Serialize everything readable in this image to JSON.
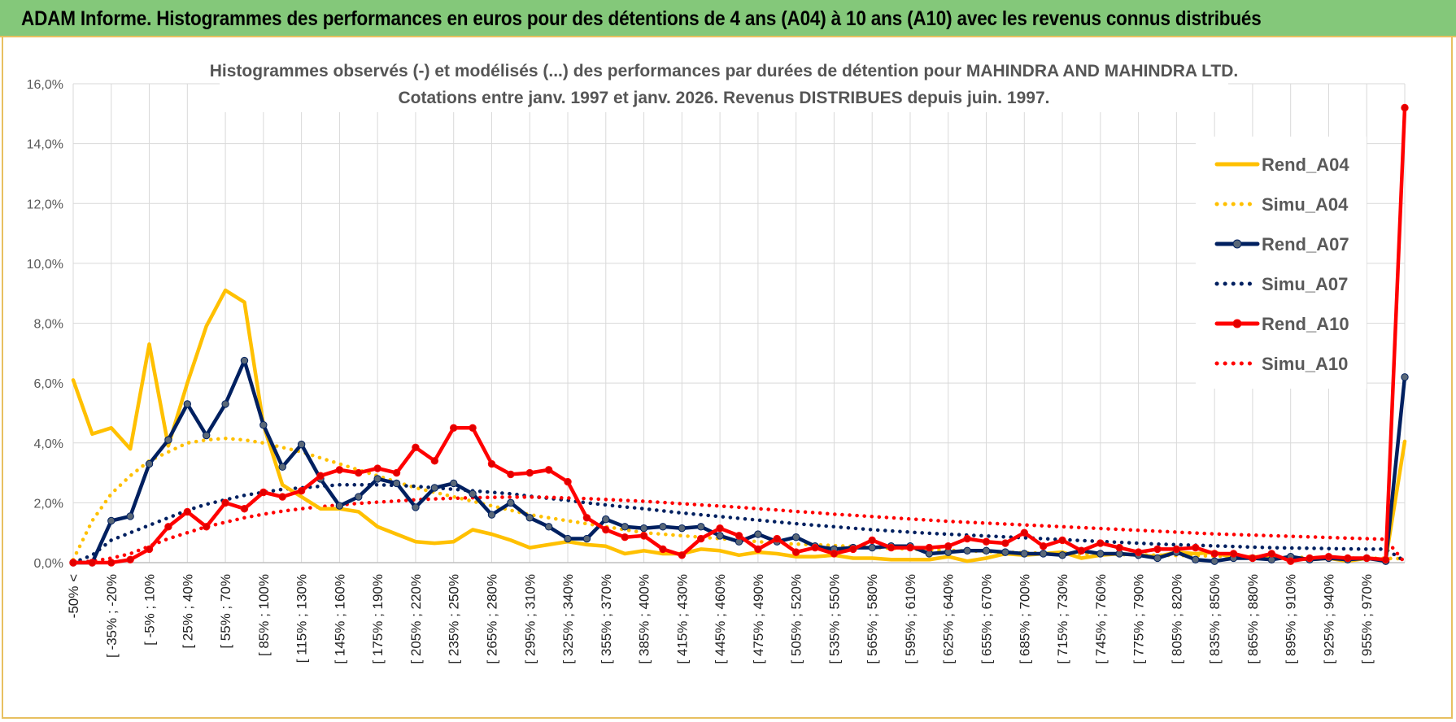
{
  "header": {
    "title": "ADAM Informe. Histogrammes des performances en euros pour des détentions de 4 ans (A04) à 10 ans (A10) avec les revenus connus distribués"
  },
  "colors": {
    "a04": "#FFC000",
    "a07": "#002060",
    "a10": "#FF0000",
    "a07_marker": "#5a6878",
    "a10_marker": "#E00000",
    "grid": "#d9d9d9",
    "banner": "#84c87a"
  },
  "chart_data": {
    "type": "line",
    "title_line1": "Histogrammes observés (-) et modélisés (...) des performances par durées de détention pour MAHINDRA AND MAHINDRA LTD.",
    "title_line2": "Cotations entre janv. 1997 et janv. 2026. Revenus DISTRIBUES depuis juin. 1997.",
    "ylim": [
      0,
      16
    ],
    "yticks": [
      "0,0%",
      "2,0%",
      "4,0%",
      "6,0%",
      "8,0%",
      "10,0%",
      "12,0%",
      "14,0%",
      "16,0%"
    ],
    "n_categories": 71,
    "x_tick_labels": [
      "-50% <",
      "[ -35% ; -20%",
      "[ -5% ; 10%",
      "[ 25% ; 40%",
      "[ 55% ; 70%",
      "[ 85% ; 100%",
      "[ 115% ; 130%",
      "[ 145% ; 160%",
      "[ 175% ; 190%",
      "[ 205% ; 220%",
      "[ 235% ; 250%",
      "[ 265% ; 280%",
      "[ 295% ; 310%",
      "[ 325% ; 340%",
      "[ 355% ; 370%",
      "[ 385% ; 400%",
      "[ 415% ; 430%",
      "[ 445% ; 460%",
      "[ 475% ; 490%",
      "[ 505% ; 520%",
      "[ 535% ; 550%",
      "[ 565% ; 580%",
      "[ 595% ; 610%",
      "[ 625% ; 640%",
      "[ 655% ; 670%",
      "[ 685% ; 700%",
      "[ 715% ; 730%",
      "[ 745% ; 760%",
      "[ 775% ; 790%",
      "[ 805% ; 820%",
      "[ 835% ; 850%",
      "[ 865% ; 880%",
      "[ 895% ; 910%",
      "[ 925% ; 940%",
      "[ 955% ; 970%"
    ],
    "legend_position": "right",
    "series": [
      {
        "name": "Rend_A04",
        "style": "solid",
        "markers": false,
        "color_key": "a04",
        "values": [
          6.1,
          4.3,
          4.5,
          3.8,
          7.3,
          3.9,
          6.0,
          7.9,
          9.1,
          8.7,
          4.6,
          2.6,
          2.2,
          1.8,
          1.8,
          1.7,
          1.2,
          0.95,
          0.7,
          0.65,
          0.7,
          1.1,
          0.95,
          0.75,
          0.5,
          0.6,
          0.7,
          0.6,
          0.55,
          0.3,
          0.4,
          0.3,
          0.3,
          0.45,
          0.4,
          0.25,
          0.35,
          0.3,
          0.2,
          0.2,
          0.25,
          0.15,
          0.15,
          0.1,
          0.1,
          0.1,
          0.2,
          0.05,
          0.15,
          0.3,
          0.25,
          0.3,
          0.35,
          0.15,
          0.25,
          0.3,
          0.25,
          0.2,
          0.35,
          0.3,
          0.35,
          0.15,
          0.2,
          0.15,
          0.15,
          0.1,
          0.15,
          0.05,
          0.15,
          0.1,
          4.05
        ]
      },
      {
        "name": "Simu_A04",
        "style": "dotted",
        "markers": false,
        "color_key": "a04",
        "values": [
          0.1,
          1.4,
          2.3,
          2.9,
          3.4,
          3.7,
          4.0,
          4.1,
          4.15,
          4.1,
          4.0,
          3.85,
          3.7,
          3.5,
          3.3,
          3.1,
          2.9,
          2.7,
          2.5,
          2.35,
          2.2,
          2.05,
          1.9,
          1.75,
          1.6,
          1.5,
          1.4,
          1.3,
          1.2,
          1.1,
          1.0,
          0.95,
          0.9,
          0.85,
          0.8,
          0.75,
          0.7,
          0.65,
          0.62,
          0.6,
          0.57,
          0.54,
          0.51,
          0.48,
          0.45,
          0.43,
          0.41,
          0.39,
          0.37,
          0.35,
          0.33,
          0.32,
          0.3,
          0.29,
          0.28,
          0.27,
          0.26,
          0.25,
          0.24,
          0.23,
          0.22,
          0.21,
          0.2,
          0.19,
          0.18,
          0.17,
          0.16,
          0.15,
          0.15,
          0.14,
          0.13
        ]
      },
      {
        "name": "Rend_A07",
        "style": "solid",
        "markers": true,
        "color_key": "a07",
        "marker_key": "a07_marker",
        "values": [
          0.0,
          0.0,
          1.4,
          1.55,
          3.3,
          4.1,
          5.3,
          4.25,
          5.3,
          6.75,
          4.6,
          3.2,
          3.95,
          2.8,
          1.9,
          2.2,
          2.8,
          2.65,
          1.85,
          2.5,
          2.65,
          2.3,
          1.6,
          2.0,
          1.5,
          1.2,
          0.8,
          0.8,
          1.45,
          1.2,
          1.15,
          1.2,
          1.15,
          1.2,
          0.9,
          0.7,
          0.95,
          0.7,
          0.85,
          0.55,
          0.45,
          0.5,
          0.5,
          0.55,
          0.55,
          0.3,
          0.35,
          0.4,
          0.4,
          0.35,
          0.3,
          0.3,
          0.25,
          0.4,
          0.3,
          0.3,
          0.25,
          0.15,
          0.35,
          0.1,
          0.05,
          0.15,
          0.15,
          0.1,
          0.2,
          0.1,
          0.15,
          0.1,
          0.15,
          0.05,
          6.2
        ]
      },
      {
        "name": "Simu_A07",
        "style": "dotted",
        "markers": false,
        "color_key": "a07",
        "values": [
          0.0,
          0.25,
          0.75,
          1.0,
          1.25,
          1.5,
          1.75,
          1.95,
          2.1,
          2.25,
          2.35,
          2.45,
          2.5,
          2.55,
          2.6,
          2.6,
          2.6,
          2.58,
          2.55,
          2.5,
          2.45,
          2.4,
          2.35,
          2.3,
          2.22,
          2.15,
          2.08,
          2.0,
          1.93,
          1.86,
          1.8,
          1.73,
          1.66,
          1.6,
          1.54,
          1.48,
          1.42,
          1.36,
          1.3,
          1.25,
          1.2,
          1.15,
          1.1,
          1.06,
          1.02,
          0.98,
          0.95,
          0.92,
          0.89,
          0.86,
          0.83,
          0.8,
          0.77,
          0.74,
          0.71,
          0.68,
          0.65,
          0.62,
          0.6,
          0.58,
          0.56,
          0.54,
          0.52,
          0.5,
          0.49,
          0.48,
          0.47,
          0.46,
          0.45,
          0.45,
          0.05
        ]
      },
      {
        "name": "Rend_A10",
        "style": "solid",
        "markers": true,
        "color_key": "a10",
        "marker_key": "a10_marker",
        "values": [
          0.0,
          0.0,
          0.0,
          0.1,
          0.45,
          1.2,
          1.7,
          1.2,
          2.0,
          1.8,
          2.35,
          2.2,
          2.4,
          2.9,
          3.1,
          3.0,
          3.15,
          3.0,
          3.85,
          3.4,
          4.5,
          4.5,
          3.3,
          2.95,
          3.0,
          3.1,
          2.7,
          1.5,
          1.1,
          0.85,
          0.9,
          0.45,
          0.25,
          0.8,
          1.15,
          0.9,
          0.45,
          0.8,
          0.35,
          0.5,
          0.3,
          0.45,
          0.75,
          0.5,
          0.5,
          0.5,
          0.55,
          0.8,
          0.7,
          0.65,
          1.0,
          0.55,
          0.75,
          0.4,
          0.65,
          0.5,
          0.35,
          0.45,
          0.45,
          0.5,
          0.3,
          0.3,
          0.15,
          0.3,
          0.05,
          0.15,
          0.2,
          0.15,
          0.15,
          0.1,
          15.2
        ]
      },
      {
        "name": "Simu_A10",
        "style": "dotted",
        "markers": false,
        "color_key": "a10",
        "values": [
          0.0,
          0.05,
          0.15,
          0.3,
          0.55,
          0.8,
          1.0,
          1.2,
          1.35,
          1.5,
          1.62,
          1.72,
          1.8,
          1.87,
          1.93,
          1.98,
          2.02,
          2.06,
          2.1,
          2.13,
          2.15,
          2.17,
          2.18,
          2.19,
          2.19,
          2.18,
          2.16,
          2.14,
          2.11,
          2.08,
          2.05,
          2.01,
          1.97,
          1.93,
          1.89,
          1.85,
          1.8,
          1.76,
          1.71,
          1.67,
          1.62,
          1.58,
          1.54,
          1.5,
          1.46,
          1.42,
          1.38,
          1.35,
          1.32,
          1.29,
          1.26,
          1.23,
          1.2,
          1.17,
          1.14,
          1.11,
          1.08,
          1.05,
          1.02,
          0.99,
          0.96,
          0.94,
          0.92,
          0.9,
          0.88,
          0.86,
          0.84,
          0.82,
          0.8,
          0.78,
          0.0
        ]
      }
    ]
  }
}
